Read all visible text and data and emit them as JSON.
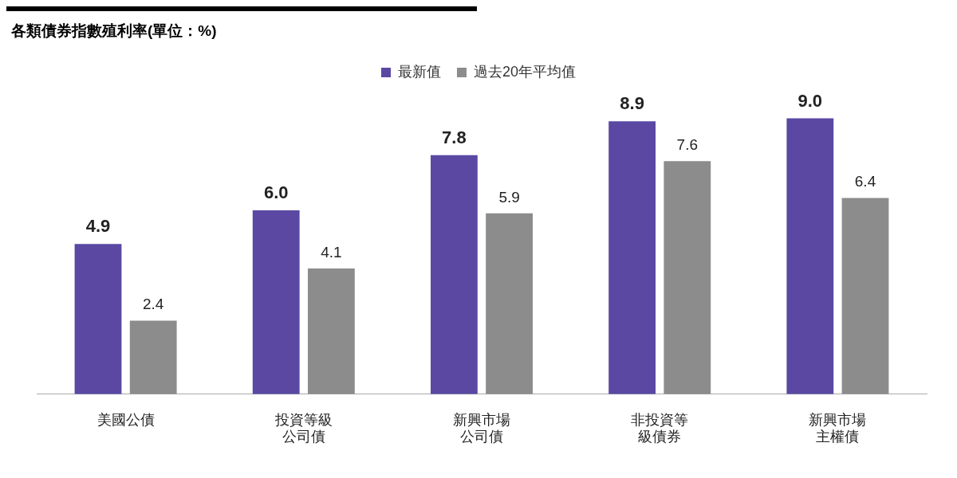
{
  "chart_data": {
    "type": "bar",
    "title": "各類債券指數殖利率(單位：%)",
    "categories": [
      "美國公債",
      "投資等級公司債",
      "新興市場公司債",
      "非投資等級債券",
      "新興市場主權債"
    ],
    "series": [
      {
        "name": "最新值",
        "color": "#5a48a3",
        "values": [
          4.9,
          6.0,
          7.8,
          8.9,
          9.0
        ],
        "value_labels": [
          "4.9",
          "6.0",
          "7.8",
          "8.9",
          "9.0"
        ]
      },
      {
        "name": "過去20年平均值",
        "color": "#8c8c8c",
        "values": [
          2.4,
          4.1,
          5.9,
          7.6,
          6.4
        ],
        "value_labels": [
          "2.4",
          "4.1",
          "5.9",
          "7.6",
          "6.4"
        ]
      }
    ],
    "legend": "top",
    "grid": false
  }
}
